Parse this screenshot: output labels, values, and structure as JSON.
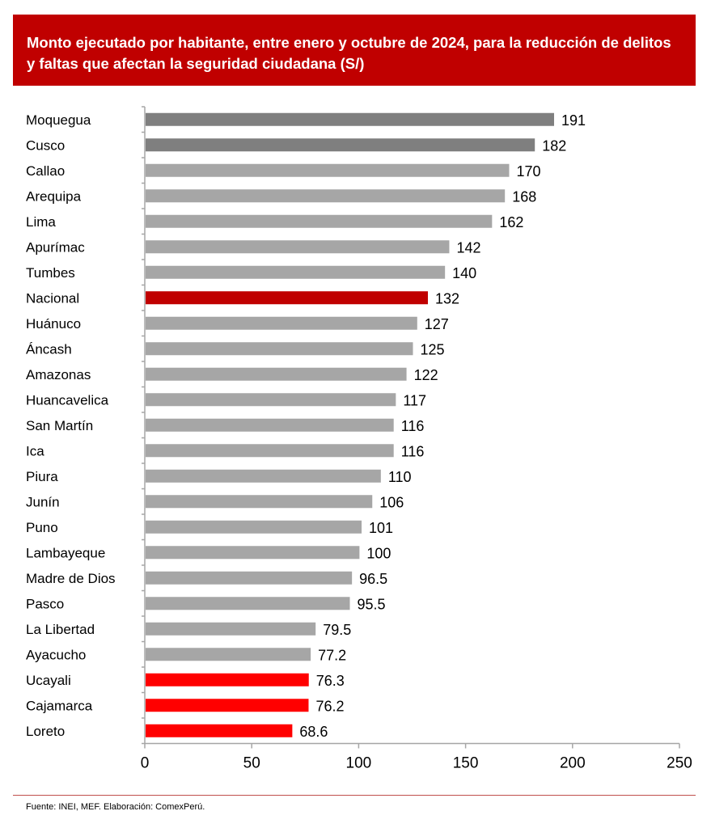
{
  "chart_data": {
    "type": "bar",
    "orientation": "horizontal",
    "title": "Monto ejecutado por habitante, entre enero y octubre de 2024, para la reducción de delitos y faltas que afectan la seguridad ciudadana (S/)",
    "categories": [
      "Moquegua",
      "Cusco",
      "Callao",
      "Arequipa",
      "Lima",
      "Apurímac",
      "Tumbes",
      "Nacional",
      "Huánuco",
      "Áncash",
      "Amazonas",
      "Huancavelica",
      "San Martín",
      "Ica",
      "Piura",
      "Junín",
      "Puno",
      "Lambayeque",
      "Madre de Dios",
      "Pasco",
      "La Libertad",
      "Ayacucho",
      "Ucayali",
      "Cajamarca",
      "Loreto"
    ],
    "values": [
      191,
      182,
      170,
      168,
      162,
      142,
      140,
      132,
      127,
      125,
      122,
      117,
      116,
      116,
      110,
      106,
      101,
      100,
      96.5,
      95.5,
      79.5,
      77.2,
      76.3,
      76.2,
      68.6
    ],
    "labels": [
      "191",
      "182",
      "170",
      "168",
      "162",
      "142",
      "140",
      "132",
      "127",
      "125",
      "122",
      "117",
      "116",
      "116",
      "110",
      "106",
      "101",
      "100",
      "96.5",
      "95.5",
      "79.5",
      "77.2",
      "76.3",
      "76.2",
      "68.6"
    ],
    "colors": [
      "#7F7F7F",
      "#7F7F7F",
      "#A6A6A6",
      "#A6A6A6",
      "#A6A6A6",
      "#A6A6A6",
      "#A6A6A6",
      "#C00000",
      "#A6A6A6",
      "#A6A6A6",
      "#A6A6A6",
      "#A6A6A6",
      "#A6A6A6",
      "#A6A6A6",
      "#A6A6A6",
      "#A6A6A6",
      "#A6A6A6",
      "#A6A6A6",
      "#A6A6A6",
      "#A6A6A6",
      "#A6A6A6",
      "#A6A6A6",
      "#FF0000",
      "#FF0000",
      "#FF0000"
    ],
    "xlim": [
      0,
      250
    ],
    "xticks": [
      "0",
      "50",
      "100",
      "150",
      "200",
      "250"
    ],
    "xlabel": "",
    "ylabel": "",
    "grid": false
  },
  "footer": {
    "source": "Fuente: INEI, MEF. Elaboración: ComexPerú."
  }
}
